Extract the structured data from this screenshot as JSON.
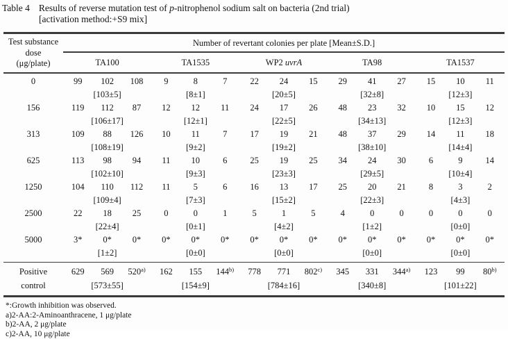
{
  "title": {
    "table_no": "Table 4",
    "main_pre": "Results of reverse mutation test of ",
    "main_italic": "p",
    "main_post": "-nitrophenol sodium salt on bacteria (2nd trial)",
    "sub": "[activation method:+S9 mix]"
  },
  "header": {
    "dose_line1": "Test substance",
    "dose_line2": "dose",
    "dose_line3": "(μg/plate)",
    "span": "Number of revertant colonies per plate [Mean±S.D.]",
    "strains": [
      {
        "name": "TA100",
        "italic": ""
      },
      {
        "name": "TA1535",
        "italic": ""
      },
      {
        "name": "WP2 ",
        "italic": "uvrA"
      },
      {
        "name": "TA98",
        "italic": ""
      },
      {
        "name": "TA1537",
        "italic": ""
      }
    ]
  },
  "rows": [
    {
      "dose": "0",
      "v": [
        "99",
        "102",
        "108",
        "9",
        "8",
        "7",
        "22",
        "24",
        "15",
        "29",
        "41",
        "27",
        "15",
        "10",
        "11"
      ],
      "means": [
        "[103±5]",
        "[8±1]",
        "[20±5]",
        "[32±8]",
        "[12±3]"
      ]
    },
    {
      "dose": "156",
      "v": [
        "119",
        "112",
        "87",
        "12",
        "12",
        "11",
        "24",
        "17",
        "26",
        "48",
        "23",
        "32",
        "10",
        "15",
        "12"
      ],
      "means": [
        "[106±17]",
        "[12±1]",
        "[22±5]",
        "[34±13]",
        "[12±3]"
      ]
    },
    {
      "dose": "313",
      "v": [
        "109",
        "88",
        "126",
        "10",
        "11",
        "7",
        "17",
        "19",
        "21",
        "48",
        "37",
        "29",
        "14",
        "11",
        "18"
      ],
      "means": [
        "[108±19]",
        "[9±2]",
        "[19±2]",
        "[38±10]",
        "[14±4]"
      ]
    },
    {
      "dose": "625",
      "v": [
        "113",
        "98",
        "94",
        "11",
        "10",
        "6",
        "25",
        "19",
        "25",
        "34",
        "24",
        "30",
        "6",
        "9",
        "14"
      ],
      "means": [
        "[102±10]",
        "[9±3]",
        "[23±3]",
        "[29±5]",
        "[10±4]"
      ]
    },
    {
      "dose": "1250",
      "v": [
        "104",
        "110",
        "112",
        "11",
        "5",
        "6",
        "16",
        "13",
        "17",
        "25",
        "20",
        "21",
        "8",
        "3",
        "2"
      ],
      "means": [
        "[109±4]",
        "[7±3]",
        "[15±2]",
        "[22±3]",
        "[4±3]"
      ]
    },
    {
      "dose": "2500",
      "v": [
        "22",
        "18",
        "25",
        "0",
        "0",
        "1",
        "5",
        "1",
        "5",
        "4",
        "0",
        "0",
        "0",
        "0",
        "0"
      ],
      "means": [
        "[22±4]",
        "[0±1]",
        "[4±2]",
        "[1±2]",
        "[0±0]"
      ]
    },
    {
      "dose": "5000",
      "v": [
        "3*",
        "0*",
        "0*",
        "0*",
        "0*",
        "0*",
        "0*",
        "0*",
        "0*",
        "0*",
        "0*",
        "0*",
        "0*",
        "0*",
        "0*"
      ],
      "means": [
        "[1±2]",
        "[0±0]",
        "[0±0]",
        "[0±0]",
        "[0±0]"
      ]
    }
  ],
  "positive": {
    "label1": "Positive",
    "label2": "control",
    "v": [
      {
        "t": "629",
        "sup": ""
      },
      {
        "t": "569",
        "sup": ""
      },
      {
        "t": "520",
        "sup": "a)"
      },
      {
        "t": "162",
        "sup": ""
      },
      {
        "t": "155",
        "sup": ""
      },
      {
        "t": "144",
        "sup": "b)"
      },
      {
        "t": "778",
        "sup": ""
      },
      {
        "t": "771",
        "sup": ""
      },
      {
        "t": "802",
        "sup": "c)"
      },
      {
        "t": "345",
        "sup": ""
      },
      {
        "t": "331",
        "sup": ""
      },
      {
        "t": "344",
        "sup": "a)"
      },
      {
        "t": "123",
        "sup": ""
      },
      {
        "t": "99",
        "sup": ""
      },
      {
        "t": "80",
        "sup": "b)"
      }
    ],
    "means": [
      "[573±55]",
      "[154±9]",
      "[784±16]",
      "[340±8]",
      "[101±22]"
    ]
  },
  "footnotes": [
    "*:Growth inhibition was observed.",
    "a)2-AA:2-Aminoanthracene, 1 μg/plate",
    "b)2-AA, 2 μg/plate",
    "c)2-AA, 10 μg/plate"
  ]
}
